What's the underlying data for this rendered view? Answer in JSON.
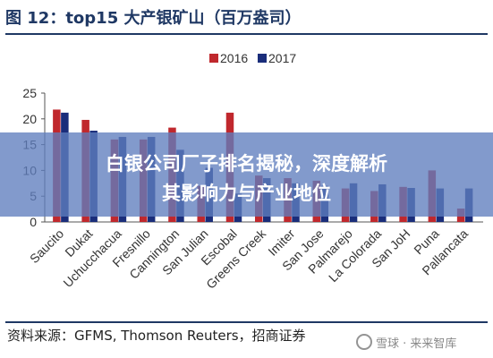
{
  "header": {
    "title": "图 12：top15 大产银矿山（百万盎司）"
  },
  "headline": {
    "line1": "白银公司厂子排名揭秘，深度解析",
    "line2": "其影响力与产业地位"
  },
  "footer": {
    "source": "资料来源：GFMS, Thomson Reuters，招商证券",
    "watermark": "雪球 · 来来智库"
  },
  "colors": {
    "y2016": "#c0282d",
    "y2017": "#1a2d7a",
    "title": "#1f3864"
  },
  "chart_data": {
    "type": "bar",
    "title": "",
    "xlabel": "",
    "ylabel": "",
    "ylim": [
      0,
      25
    ],
    "yticks": [
      0,
      5,
      10,
      15,
      20,
      25
    ],
    "grid": false,
    "legend_position": "top-center",
    "categories": [
      "Saucito",
      "Dukat",
      "Uchucchacua",
      "Fresnillo",
      "Cannington",
      "San Julian",
      "Escobal",
      "Greens Creek",
      "Imiter",
      "San Jose",
      "Palmarejo",
      "La Colorada",
      "San JoH",
      "Puna",
      "Pallancata"
    ],
    "series": [
      {
        "name": "2016",
        "color": "#c0282d",
        "values": [
          21.8,
          19.8,
          16.0,
          16.0,
          18.3,
          7.0,
          21.2,
          9.0,
          8.5,
          8.0,
          6.5,
          6.0,
          6.8,
          10.0,
          2.6
        ]
      },
      {
        "name": "2017",
        "color": "#1a2d7a",
        "values": [
          21.2,
          17.7,
          16.5,
          16.5,
          14.0,
          10.5,
          5.5,
          8.5,
          7.5,
          7.0,
          7.5,
          7.3,
          6.6,
          6.5,
          6.5
        ]
      }
    ]
  }
}
